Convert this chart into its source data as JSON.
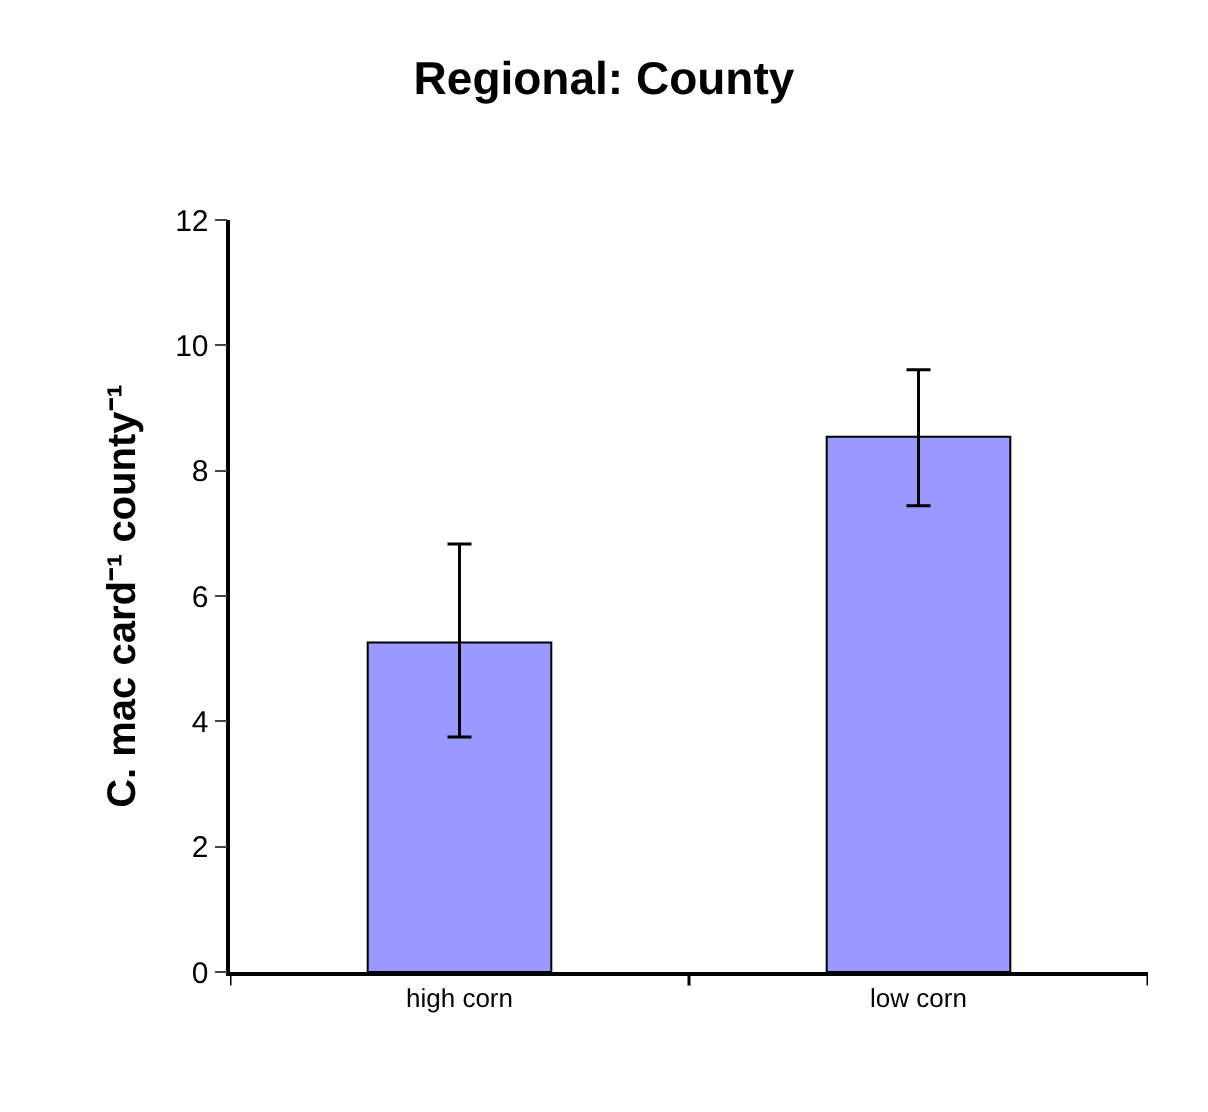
{
  "chart_data": {
    "type": "bar",
    "title": "Regional: County",
    "ylabel": "C. mac card⁻¹ county⁻¹",
    "categories": [
      "high corn",
      "low corn"
    ],
    "values": [
      5.26,
      8.54
    ],
    "errors": [
      [
        3.75,
        6.83
      ],
      [
        7.44,
        9.61
      ]
    ],
    "color": "#9999ff",
    "ylim": [
      0,
      12
    ],
    "yticks": [
      0,
      2,
      4,
      6,
      8,
      10,
      12
    ],
    "grid": false
  }
}
